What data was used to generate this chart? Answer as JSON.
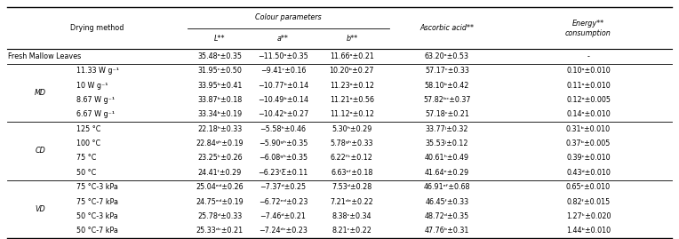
{
  "col_headers_row1_left": "Drying method",
  "col_headers_row1_cp": "Colour parameters",
  "col_headers_row1_aa": "Ascorbic acid**",
  "col_headers_row1_en": "Energy**\nconsumption",
  "col_headers_row2": [
    "L**",
    "a**",
    "b**"
  ],
  "rows": [
    [
      "Fresh Mallow Leaves",
      "",
      "35.48ᵃ±0.35",
      "−11.50ᵃ±0.35",
      "11.66ᵃ±0.21",
      "63.20ᵃ±0.53",
      "-"
    ],
    [
      "MD",
      "11.33 W g⁻¹",
      "31.95ᶜ±0.50",
      "−9.41ᶜ±0.16",
      "10.20ᵇ±0.27",
      "57.17ᶜ±0.33",
      "0.10ᵃ±0.010"
    ],
    [
      "",
      "10 W g⁻¹",
      "33.95ᵇ±0.41",
      "−10.77ᵇ±0.14",
      "11.23ᵃ±0.12",
      "58.10ᵇ±0.42",
      "0.11ᵃ±0.010"
    ],
    [
      "",
      "8.67 W g⁻¹",
      "33.87ᵇ±0.18",
      "−10.49ᵇ±0.14",
      "11.21ᵃ±0.56",
      "57.82ᵇᶜ±0.37",
      "0.12ᵃ±0.005"
    ],
    [
      "",
      "6.67 W g⁻¹",
      "33.34ᵇ±0.19",
      "−10.42ᵇ±0.27",
      "11.12ᵃ±0.12",
      "57.18ᶜ±0.21",
      "0.14ᵃ±0.010"
    ],
    [
      "CD",
      "125 °C",
      "22.18ʰ±0.33",
      "−5.58ʰ±0.46",
      "5.30ʰ±0.29",
      "33.77ʲ±0.32",
      "0.31ᵇ±0.010"
    ],
    [
      "",
      "100 °C",
      "22.84ᵍʰ±0.19",
      "−5.90ᵍʰ±0.35",
      "5.78ᵍʰ±0.33",
      "35.53ʲ±0.12",
      "0.37ᵇ±0.005"
    ],
    [
      "",
      "75 °C",
      "23.25ᵏ±0.26",
      "−6.08ᵍʰ±0.35",
      "6.22ᶠᵏ±0.12",
      "40.61ʰ±0.49",
      "0.39ᶜ±0.010"
    ],
    [
      "",
      "50 °C",
      "24.41ᶠ±0.29",
      "−6.23ᶠƸ±0.11",
      "6.63ᵉᶠ±0.18",
      "41.64ᵉ±0.29",
      "0.43ᵈ±0.010"
    ],
    [
      "VD",
      "75 °C-3 kPa",
      "25.04ᵉᵈ±0.26",
      "−7.37ᵈ±0.25",
      "7.53ᵈ±0.28",
      "46.91ᵉᶠ±0.68",
      "0.65ᵉ±0.010"
    ],
    [
      "",
      "75 °C-7 kPa",
      "24.75ᵉᵈ±0.19",
      "−6.72ᵉᵈ±0.23",
      "7.21ᵈᵉ±0.22",
      "46.45ᶠ±0.33",
      "0.82ᶠ±0.015"
    ],
    [
      "",
      "50 °C-3 kPa",
      "25.78ᵈ±0.33",
      "−7.46ᵈ±0.21",
      "8.38ᶜ±0.34",
      "48.72ᵈ±0.35",
      "1.27ᵏ±0.020"
    ],
    [
      "",
      "50 °C-7 kPa",
      "25.33ᵈᶜ±0.21",
      "−7.24ᵈᶜ±0.23",
      "8.21ᶜ±0.22",
      "47.76ᵇ±0.31",
      "1.44ᵇ±0.010"
    ]
  ],
  "group_info": [
    {
      "label": "MD",
      "start": 1,
      "end": 4
    },
    {
      "label": "CD",
      "start": 5,
      "end": 8
    },
    {
      "label": "VD",
      "start": 9,
      "end": 12
    }
  ],
  "background_color": "#ffffff",
  "text_color": "#000000",
  "font_size": 5.8,
  "header_font_size": 5.8
}
